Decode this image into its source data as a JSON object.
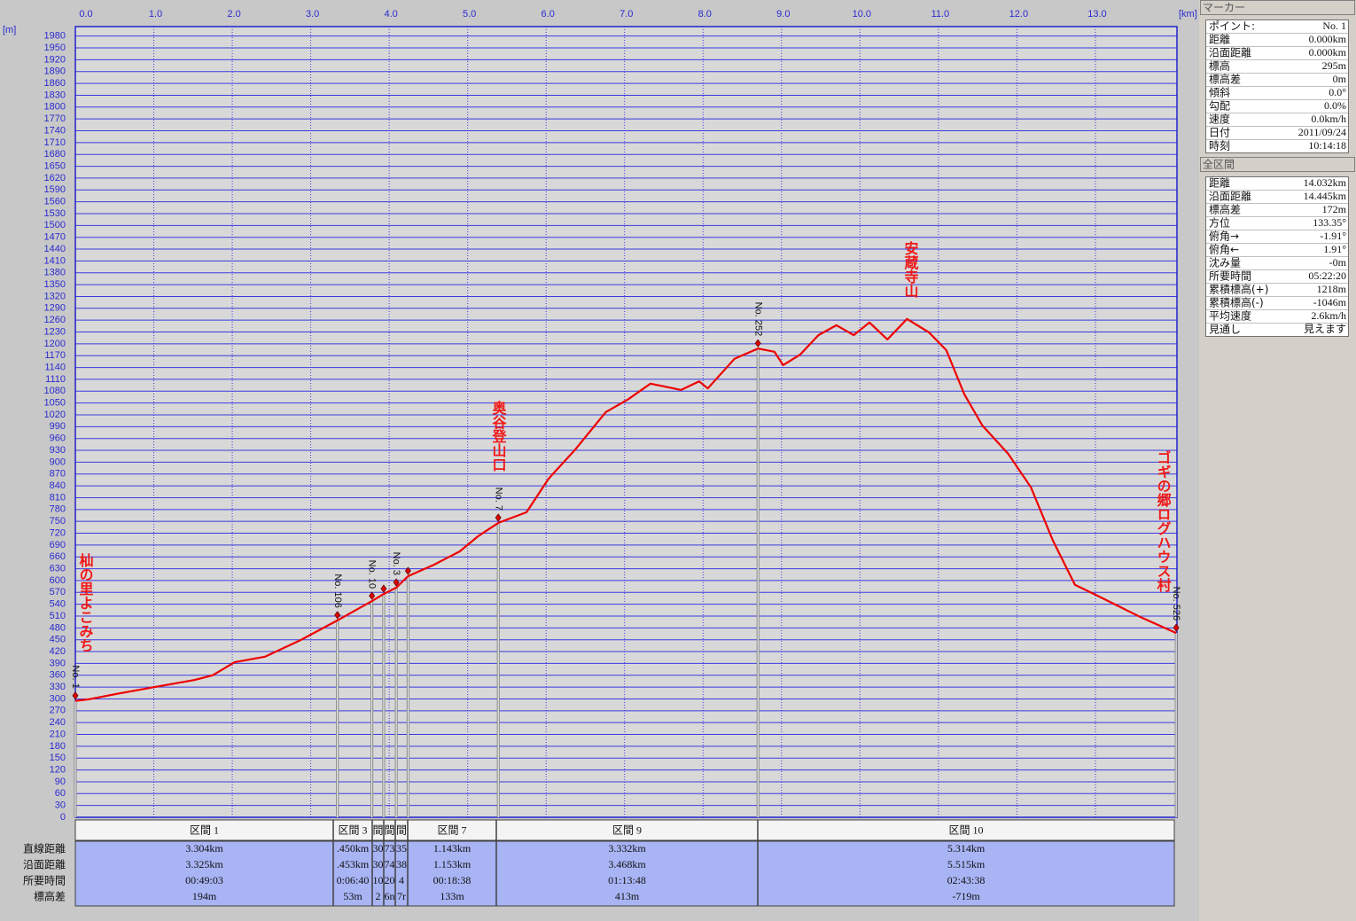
{
  "chart_data": {
    "type": "line",
    "y_unit": "[m]",
    "x_unit": "[km]",
    "x": [
      0.0,
      0.17,
      0.51,
      1.01,
      1.52,
      1.75,
      2.03,
      2.42,
      2.87,
      3.34,
      3.78,
      3.93,
      4.09,
      4.24,
      4.57,
      4.9,
      5.13,
      5.39,
      5.75,
      6.03,
      6.37,
      6.76,
      7.05,
      7.33,
      7.72,
      7.95,
      8.06,
      8.4,
      8.7,
      8.91,
      9.02,
      9.24,
      9.47,
      9.7,
      9.92,
      10.12,
      10.35,
      10.6,
      10.88,
      11.1,
      11.33,
      11.56,
      11.89,
      12.18,
      12.46,
      12.74,
      13.02,
      13.59,
      14.03
    ],
    "series": [
      {
        "color": "#ee0000",
        "values": [
          295,
          299,
          312,
          330,
          348,
          360,
          393,
          407,
          449,
          499,
          548,
          566,
          582,
          611,
          640,
          674,
          712,
          746,
          773,
          858,
          932,
          1027,
          1060,
          1099,
          1083,
          1105,
          1087,
          1162,
          1188,
          1180,
          1146,
          1173,
          1222,
          1247,
          1222,
          1254,
          1211,
          1263,
          1229,
          1184,
          1072,
          993,
          921,
          836,
          701,
          589,
          562,
          506,
          467
        ]
      }
    ],
    "xlim": [
      0,
      14.04
    ],
    "ylim": [
      0,
      2004
    ],
    "xticks": [
      {
        "value": 0,
        "label": "0.0"
      },
      {
        "value": 1,
        "label": "1.0"
      },
      {
        "value": 2,
        "label": "2.0"
      },
      {
        "value": 3,
        "label": "3.0"
      },
      {
        "value": 4,
        "label": "4.0"
      },
      {
        "value": 5,
        "label": "5.0"
      },
      {
        "value": 6,
        "label": "6.0"
      },
      {
        "value": 7,
        "label": "7.0"
      },
      {
        "value": 8,
        "label": "8.0"
      },
      {
        "value": 9,
        "label": "9.0"
      },
      {
        "value": 10,
        "label": "10.0"
      },
      {
        "value": 11,
        "label": "11.0"
      },
      {
        "value": 12,
        "label": "12.0"
      },
      {
        "value": 13,
        "label": "13.0"
      }
    ],
    "yticks": [
      0,
      30,
      60,
      90,
      120,
      150,
      180,
      210,
      240,
      270,
      300,
      330,
      360,
      390,
      420,
      450,
      480,
      510,
      540,
      570,
      600,
      630,
      660,
      690,
      720,
      750,
      780,
      810,
      840,
      870,
      900,
      930,
      960,
      990,
      1020,
      1050,
      1080,
      1110,
      1140,
      1170,
      1200,
      1230,
      1260,
      1290,
      1320,
      1350,
      1380,
      1410,
      1440,
      1470,
      1500,
      1530,
      1560,
      1590,
      1620,
      1650,
      1680,
      1710,
      1740,
      1770,
      1800,
      1830,
      1860,
      1890,
      1920,
      1950,
      1980
    ],
    "grid": true,
    "markers": [
      {
        "label": "No. 1",
        "x": 0.0,
        "y": 295
      },
      {
        "label": "No. 106",
        "x": 3.34,
        "y": 499
      },
      {
        "label": "No. 10",
        "x": 3.78,
        "y": 548
      },
      {
        "label": null,
        "x": 3.93,
        "y": 566
      },
      {
        "label": "No. 3",
        "x": 4.09,
        "y": 582
      },
      {
        "label": null,
        "x": 4.24,
        "y": 611
      },
      {
        "label": "No. 7",
        "x": 5.39,
        "y": 746
      },
      {
        "label": "No. 252",
        "x": 8.7,
        "y": 1188
      },
      {
        "label": "No. 526",
        "x": 14.03,
        "y": 467
      }
    ],
    "places": [
      "杣の里よこみち",
      "奥谷登山口",
      "安蔵寺山",
      "ゴギの郷ログハウス村"
    ]
  },
  "section_table": {
    "row_headers": [
      "直線距離",
      "沿面距離",
      "所要時間",
      "標高差"
    ],
    "columns": [
      {
        "header": "区間 1",
        "values": [
          "3.304km",
          "3.325km",
          "00:49:03",
          "194m"
        ]
      },
      {
        "header": "区間 3",
        "values": [
          ".450km",
          ".453km",
          "0:06:40",
          "53m"
        ]
      },
      {
        "header": "間",
        "values": [
          "30",
          "30",
          "10",
          "2"
        ]
      },
      {
        "header": "間",
        "values": [
          "73",
          "74",
          "20",
          "6n"
        ]
      },
      {
        "header": "間",
        "values": [
          "35",
          "38",
          "4",
          "7r"
        ]
      },
      {
        "header": "区間 7",
        "values": [
          "1.143km",
          "1.153km",
          "00:18:38",
          "133m"
        ]
      },
      {
        "header": "区間 9",
        "values": [
          "3.332km",
          "3.468km",
          "01:13:48",
          "413m"
        ]
      },
      {
        "header": "区間 10",
        "values": [
          "5.314km",
          "5.515km",
          "02:43:38",
          "-719m"
        ]
      }
    ]
  },
  "marker_panel": {
    "title": "マーカー",
    "rows": [
      {
        "key": "ポイント:",
        "value": "No. 1"
      },
      {
        "key": "距離",
        "value": "0.000km"
      },
      {
        "key": "沿面距離",
        "value": "0.000km"
      },
      {
        "key": "標高",
        "value": "295m"
      },
      {
        "key": "標高差",
        "value": "0m"
      },
      {
        "key": "傾斜",
        "value": "0.0°"
      },
      {
        "key": "勾配",
        "value": "0.0%"
      },
      {
        "key": "速度",
        "value": "0.0km/h"
      },
      {
        "key": "日付",
        "value": "2011/09/24"
      },
      {
        "key": "時刻",
        "value": "10:14:18"
      }
    ]
  },
  "total_panel": {
    "title": "全区間",
    "rows": [
      {
        "key": "距離",
        "value": "14.032km"
      },
      {
        "key": "沿面距離",
        "value": "14.445km"
      },
      {
        "key": "標高差",
        "value": "172m"
      },
      {
        "key": "方位",
        "value": "133.35°"
      },
      {
        "key": "俯角→",
        "value": "-1.91°"
      },
      {
        "key": "俯角←",
        "value": "1.91°"
      },
      {
        "key": "沈み量",
        "value": "-0m"
      },
      {
        "key": "所要時間",
        "value": "05:22:20"
      },
      {
        "key": "累積標高(+)",
        "value": "1218m"
      },
      {
        "key": "累積標高(-)",
        "value": "-1046m"
      },
      {
        "key": "平均速度",
        "value": "2.6km/h"
      },
      {
        "key": "見通し",
        "value": "見えます"
      }
    ]
  }
}
